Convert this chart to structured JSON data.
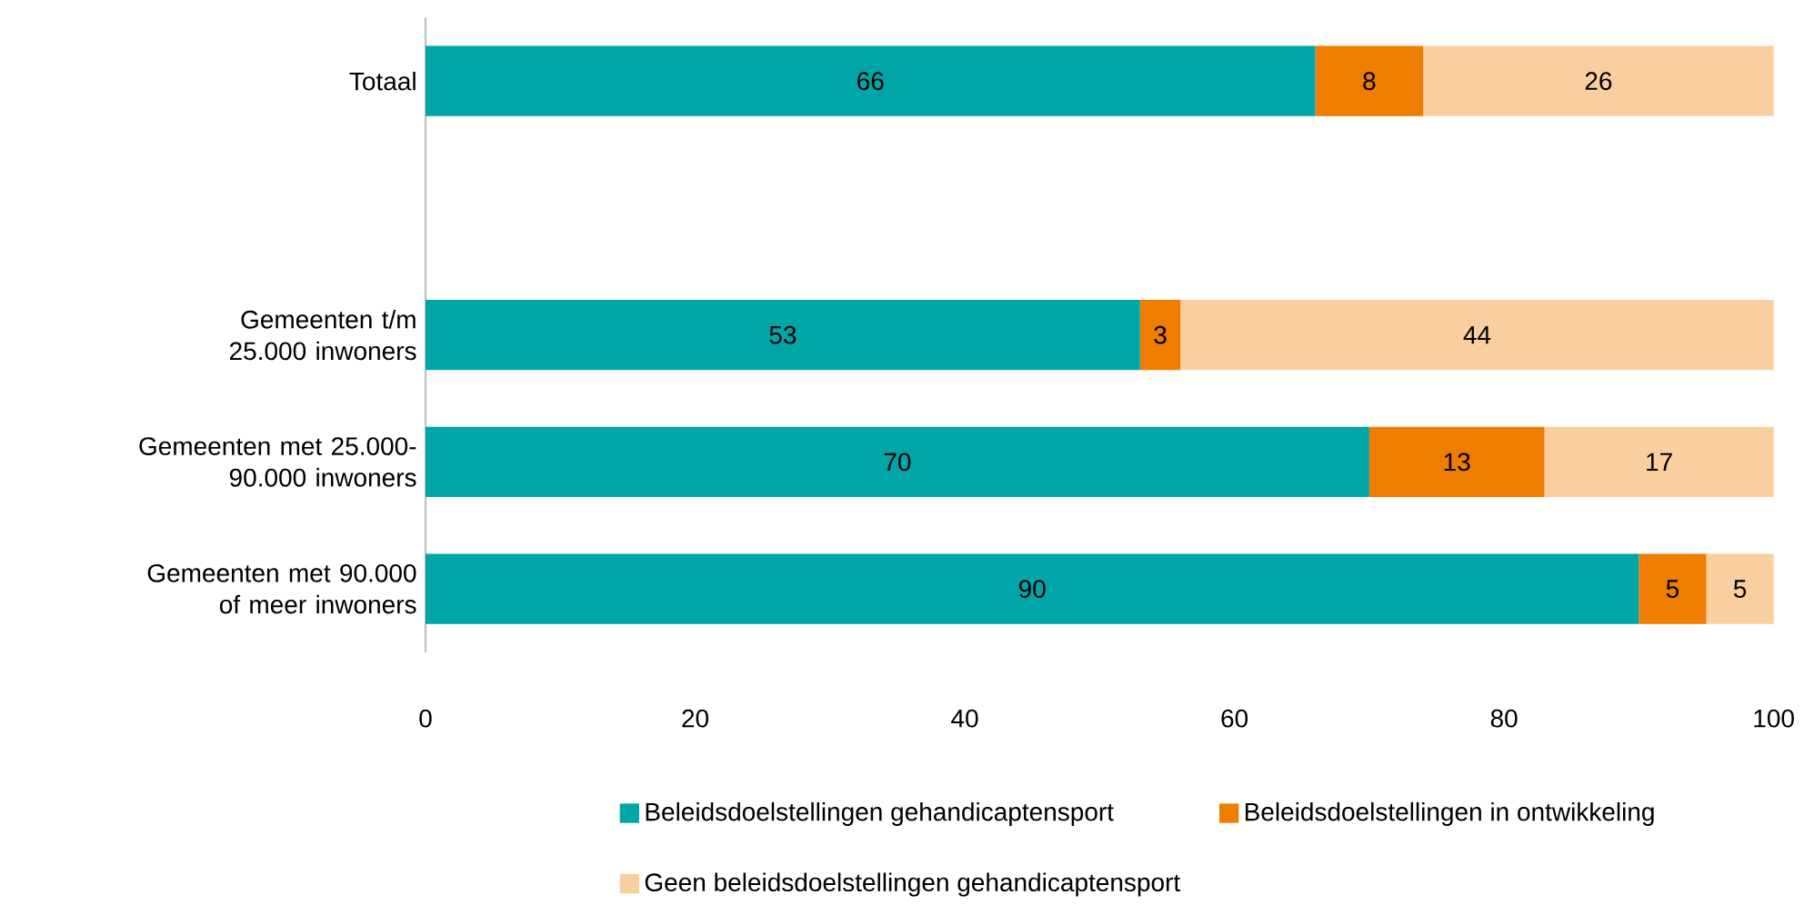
{
  "chart_data": {
    "type": "bar",
    "orientation": "horizontal",
    "stacked": true,
    "categories": [
      "Totaal",
      null,
      "Gemeenten t/m 25.000 inwoners",
      "Gemeenten met 25.000-90.000 inwoners",
      "Gemeenten met 90.000 of meer inwoners"
    ],
    "series": [
      {
        "name": "Beleidsdoelstellingen gehandicaptensport",
        "color": "#00a5a8",
        "values": [
          66,
          null,
          53,
          70,
          90
        ]
      },
      {
        "name": "Beleidsdoelstellingen in ontwikkeling",
        "color": "#ef7d00",
        "values": [
          8,
          null,
          3,
          13,
          5
        ]
      },
      {
        "name": "Geen beleidsdoelstellingen gehandicaptensport",
        "color": "#f9cfa0",
        "values": [
          26,
          null,
          44,
          17,
          5
        ]
      }
    ],
    "xlim": [
      0,
      100
    ],
    "xticks": [
      0,
      20,
      40,
      60,
      80,
      100
    ],
    "data_labels": true,
    "legend": "bottom",
    "grid": false
  }
}
